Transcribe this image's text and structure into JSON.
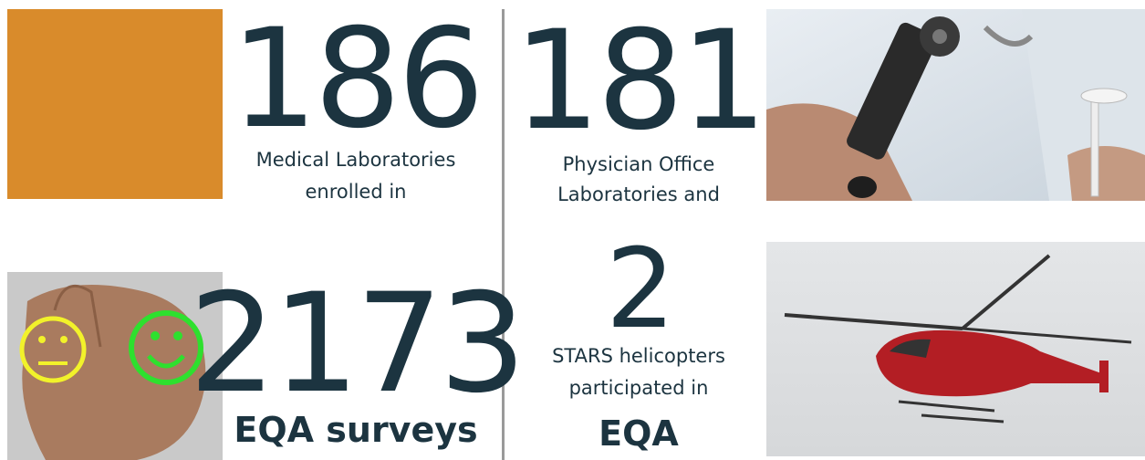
{
  "stats": [
    {
      "number": 186,
      "caption": [
        "Medical Laboratories",
        "enrolled in"
      ]
    },
    {
      "number": 181,
      "caption": [
        "Physician Office",
        "Laboratories and"
      ]
    },
    {
      "number": 2173,
      "highlight": "EQA surveys"
    },
    {
      "number": 2,
      "caption": [
        "STARS helicopters",
        "participated in"
      ],
      "highlight": "EQA"
    }
  ]
}
